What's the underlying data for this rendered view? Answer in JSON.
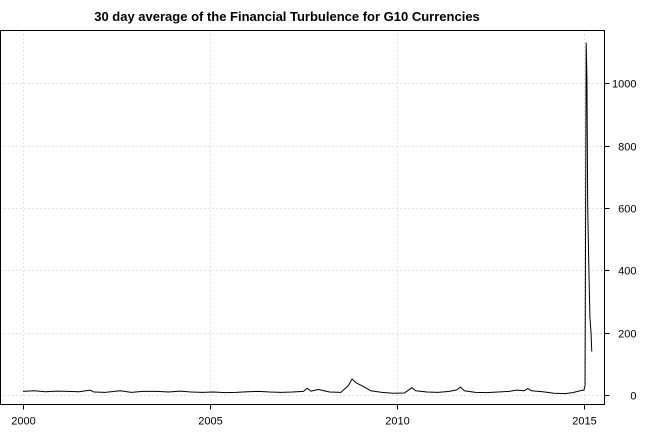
{
  "chart_data": {
    "type": "line",
    "title": "30 day average of the Financial Turbulence for G10 Currencies",
    "xlabel": "",
    "ylabel": "",
    "x_ticks": [
      "2000",
      "2005",
      "2010",
      "2015"
    ],
    "y_ticks": [
      "0",
      "200",
      "400",
      "600",
      "800",
      "1000"
    ],
    "xlim": [
      1999.4,
      2015.55
    ],
    "ylim": [
      -30,
      1170
    ],
    "y_axis_side": "right",
    "grid": true,
    "series": [
      {
        "color": "#000000",
        "points": [
          [
            2000.0,
            12
          ],
          [
            2000.3,
            14
          ],
          [
            2000.6,
            11
          ],
          [
            2000.9,
            13
          ],
          [
            2001.2,
            12
          ],
          [
            2001.5,
            11
          ],
          [
            2001.8,
            16
          ],
          [
            2001.9,
            10
          ],
          [
            2002.2,
            9
          ],
          [
            2002.6,
            14
          ],
          [
            2002.9,
            9
          ],
          [
            2003.2,
            12
          ],
          [
            2003.6,
            12
          ],
          [
            2003.9,
            10
          ],
          [
            2004.2,
            13
          ],
          [
            2004.5,
            10
          ],
          [
            2004.8,
            9
          ],
          [
            2005.1,
            10
          ],
          [
            2005.4,
            8
          ],
          [
            2005.7,
            9
          ],
          [
            2006.0,
            11
          ],
          [
            2006.3,
            12
          ],
          [
            2006.6,
            10
          ],
          [
            2006.9,
            9
          ],
          [
            2007.2,
            10
          ],
          [
            2007.5,
            12
          ],
          [
            2007.6,
            22
          ],
          [
            2007.7,
            13
          ],
          [
            2007.9,
            18
          ],
          [
            2008.2,
            10
          ],
          [
            2008.5,
            9
          ],
          [
            2008.7,
            30
          ],
          [
            2008.8,
            52
          ],
          [
            2008.9,
            40
          ],
          [
            2009.1,
            28
          ],
          [
            2009.3,
            14
          ],
          [
            2009.6,
            9
          ],
          [
            2009.9,
            6
          ],
          [
            2010.2,
            7
          ],
          [
            2010.4,
            24
          ],
          [
            2010.5,
            14
          ],
          [
            2010.8,
            10
          ],
          [
            2011.1,
            9
          ],
          [
            2011.4,
            12
          ],
          [
            2011.6,
            17
          ],
          [
            2011.7,
            26
          ],
          [
            2011.8,
            14
          ],
          [
            2012.1,
            9
          ],
          [
            2012.4,
            8
          ],
          [
            2012.7,
            10
          ],
          [
            2013.0,
            12
          ],
          [
            2013.2,
            16
          ],
          [
            2013.4,
            14
          ],
          [
            2013.5,
            21
          ],
          [
            2013.6,
            14
          ],
          [
            2013.9,
            11
          ],
          [
            2014.2,
            6
          ],
          [
            2014.5,
            5
          ],
          [
            2014.7,
            8
          ],
          [
            2014.9,
            14
          ],
          [
            2015.0,
            16
          ],
          [
            2015.03,
            30
          ],
          [
            2015.06,
            1130
          ],
          [
            2015.08,
            1020
          ],
          [
            2015.1,
            610
          ],
          [
            2015.13,
            420
          ],
          [
            2015.16,
            250
          ],
          [
            2015.19,
            200
          ],
          [
            2015.21,
            140
          ]
        ]
      }
    ]
  }
}
